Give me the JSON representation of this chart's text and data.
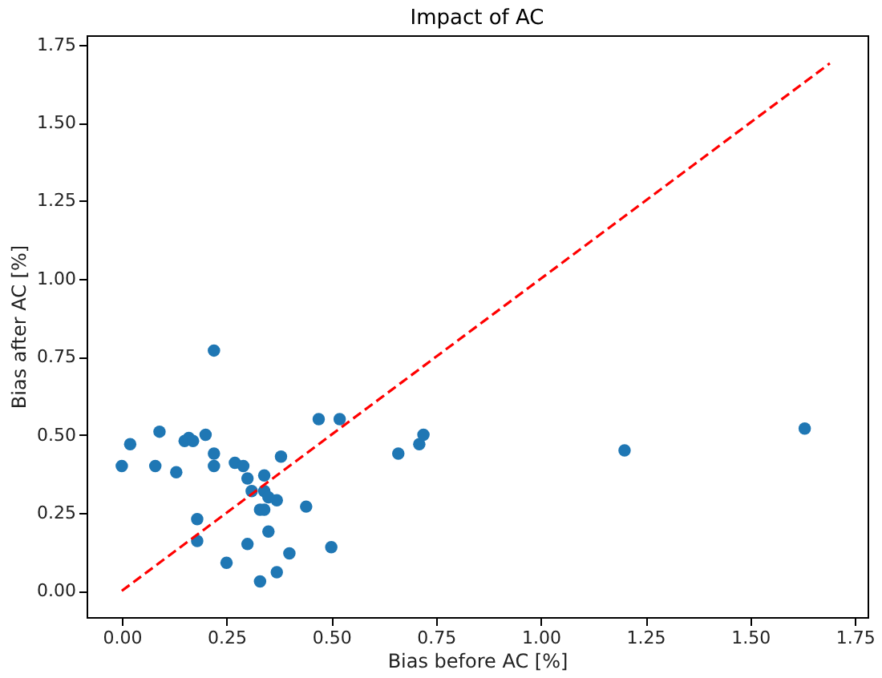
{
  "chart_data": {
    "type": "scatter",
    "title": "Impact of AC",
    "xlabel": "Bias before AC [%]",
    "ylabel": "Bias after AC [%]",
    "xlim": [
      -0.084,
      1.78
    ],
    "ylim": [
      -0.084,
      1.78
    ],
    "xticks": [
      {
        "value": 0,
        "label": "0.00"
      },
      0.25,
      {
        "value": 0.5,
        "label": "0.50"
      },
      0.75,
      {
        "value": 1,
        "label": "1.00"
      },
      1.25,
      {
        "value": 1.5,
        "label": "1.50"
      },
      1.75
    ],
    "yticks": [
      {
        "value": 0,
        "label": "0.00"
      },
      0.25,
      {
        "value": 0.5,
        "label": "0.50"
      },
      0.75,
      {
        "value": 1,
        "label": "1.00"
      },
      1.25,
      {
        "value": 1.5,
        "label": "1.50"
      },
      1.75
    ],
    "grid": false,
    "marker": "circle",
    "series": [
      {
        "color": "#1f77b4",
        "x": [
          0.0,
          0.02,
          0.09,
          0.08,
          0.13,
          0.15,
          0.16,
          0.17,
          0.2,
          0.22,
          0.22,
          0.22,
          0.18,
          0.18,
          0.27,
          0.29,
          0.3,
          0.31,
          0.34,
          0.34,
          0.35,
          0.37,
          0.38,
          0.33,
          0.34,
          0.35,
          0.3,
          0.25,
          0.33,
          0.37,
          0.4,
          0.44,
          0.5,
          0.47,
          0.52,
          0.66,
          0.71,
          0.72,
          1.2,
          1.63
        ],
        "values": [
          0.4,
          0.47,
          0.51,
          0.4,
          0.38,
          0.48,
          0.49,
          0.48,
          0.5,
          0.44,
          0.4,
          0.77,
          0.23,
          0.16,
          0.41,
          0.4,
          0.36,
          0.32,
          0.37,
          0.32,
          0.3,
          0.29,
          0.43,
          0.26,
          0.26,
          0.19,
          0.15,
          0.09,
          0.03,
          0.06,
          0.12,
          0.27,
          0.14,
          0.55,
          0.55,
          0.44,
          0.47,
          0.5,
          0.45,
          0.52
        ]
      },
      {
        "type": "line",
        "color": "#ff0000",
        "line_style": "dashed",
        "marker": "none",
        "x": [
          0,
          1.69
        ],
        "values": [
          0,
          1.69
        ]
      }
    ]
  }
}
